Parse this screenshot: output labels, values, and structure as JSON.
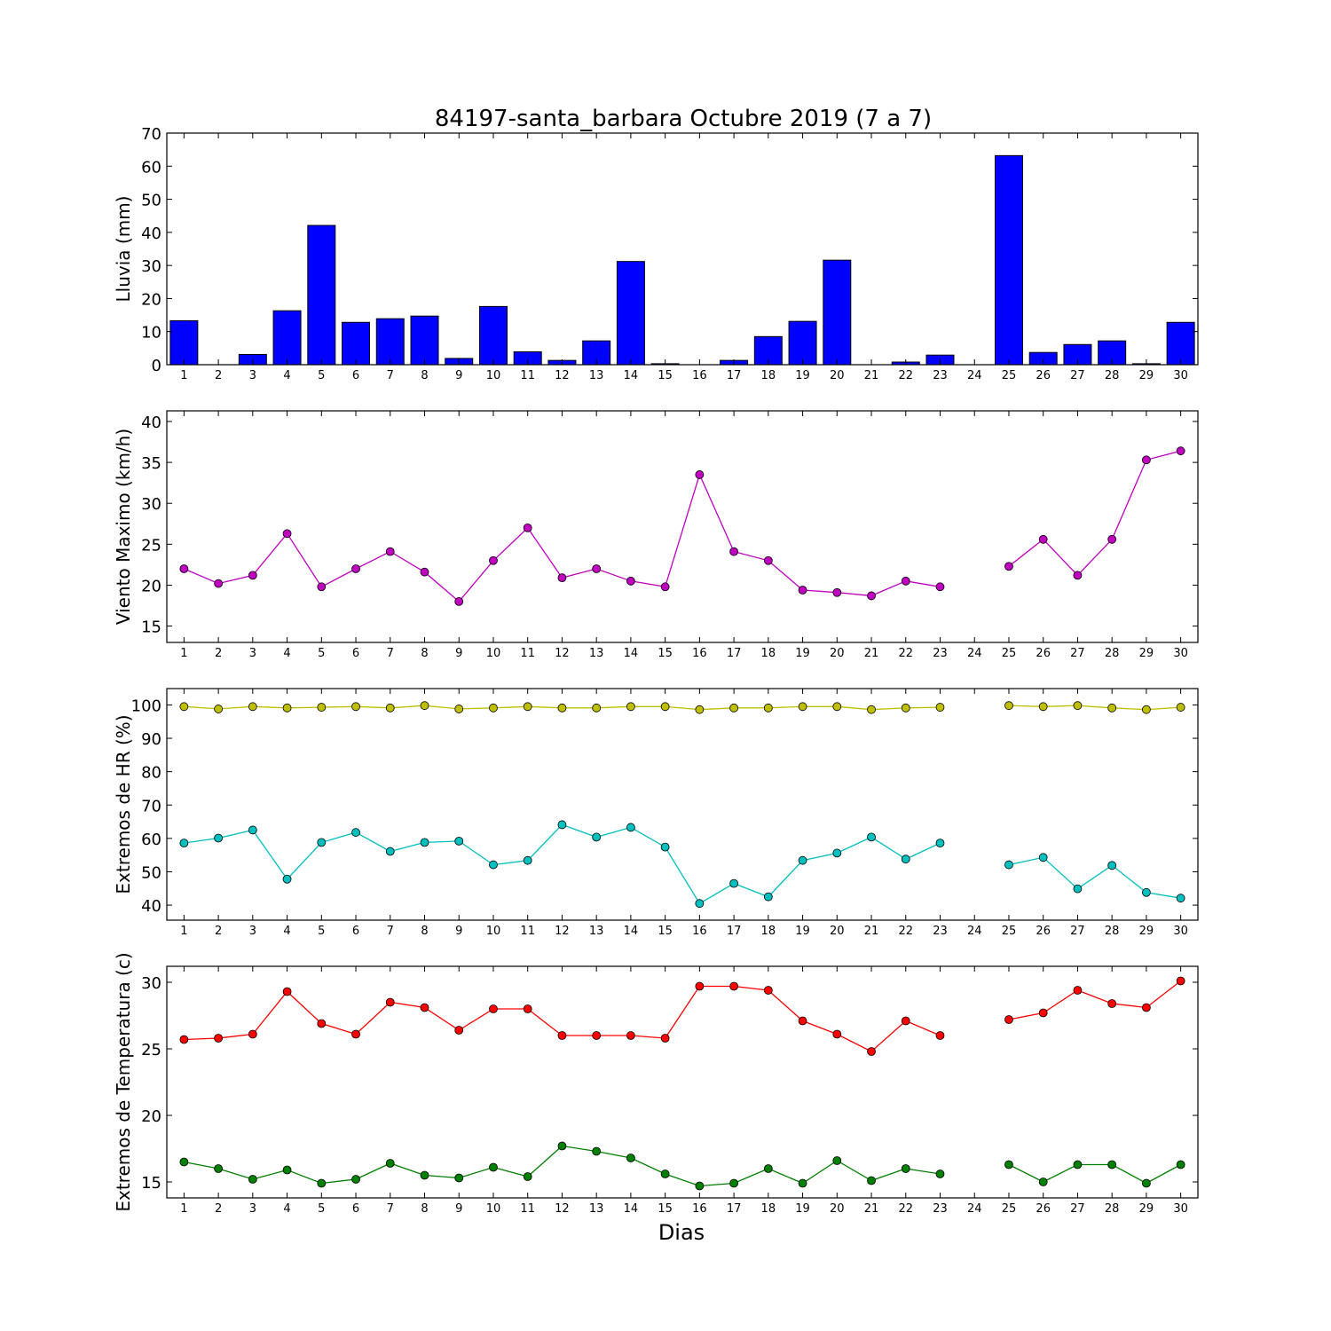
{
  "title": "84197-santa_barbara Octubre 2019  (7 a 7)",
  "xlabel": "Dias",
  "chart_data": [
    {
      "type": "bar",
      "ylabel": "Lluvia (mm)",
      "ylim": [
        0,
        70
      ],
      "yticks": [
        0,
        10,
        20,
        30,
        40,
        50,
        60,
        70
      ],
      "x": [
        1,
        2,
        3,
        4,
        5,
        6,
        7,
        8,
        9,
        10,
        11,
        12,
        13,
        14,
        15,
        16,
        17,
        18,
        19,
        20,
        21,
        22,
        23,
        24,
        25,
        26,
        27,
        28,
        29,
        30
      ],
      "series": [
        {
          "color": "#0000ff",
          "values": [
            13.3,
            0,
            3.1,
            16.3,
            42.1,
            12.8,
            13.9,
            14.7,
            1.9,
            17.6,
            3.9,
            1.3,
            7.2,
            31.2,
            0.3,
            0,
            1.3,
            8.5,
            13.1,
            31.6,
            0,
            0.8,
            2.9,
            0,
            63.2,
            3.7,
            6.1,
            7.2,
            0.3,
            12.8
          ]
        }
      ]
    },
    {
      "type": "line",
      "ylabel": "Viento Maximo (km/h)",
      "ylim": [
        13,
        41.3
      ],
      "yticks": [
        15,
        20,
        25,
        30,
        35,
        40
      ],
      "x": [
        1,
        2,
        3,
        4,
        5,
        6,
        7,
        8,
        9,
        10,
        11,
        12,
        13,
        14,
        15,
        16,
        17,
        18,
        19,
        20,
        21,
        22,
        23,
        24,
        25,
        26,
        27,
        28,
        29,
        30
      ],
      "series": [
        {
          "color": "#bf00bf",
          "values": [
            22.0,
            20.2,
            21.2,
            26.3,
            19.8,
            22.0,
            24.1,
            21.6,
            18.0,
            23.0,
            27.0,
            20.9,
            22.0,
            20.5,
            19.8,
            33.5,
            24.1,
            23.0,
            19.4,
            19.1,
            18.7,
            20.5,
            19.8,
            null,
            22.3,
            25.6,
            21.2,
            25.6,
            35.3,
            36.4
          ]
        }
      ]
    },
    {
      "type": "line",
      "ylabel": "Extremos de HR (%)",
      "ylim": [
        35.5,
        104.9
      ],
      "yticks": [
        40,
        50,
        60,
        70,
        80,
        90,
        100
      ],
      "x": [
        1,
        2,
        3,
        4,
        5,
        6,
        7,
        8,
        9,
        10,
        11,
        12,
        13,
        14,
        15,
        16,
        17,
        18,
        19,
        20,
        21,
        22,
        23,
        24,
        25,
        26,
        27,
        28,
        29,
        30
      ],
      "series": [
        {
          "color": "#bfbf00",
          "values": [
            99.5,
            98.8,
            99.5,
            99.1,
            99.3,
            99.5,
            99.1,
            99.8,
            98.8,
            99.1,
            99.5,
            99.1,
            99.1,
            99.5,
            99.5,
            98.6,
            99.1,
            99.1,
            99.5,
            99.5,
            98.6,
            99.1,
            99.3,
            null,
            99.8,
            99.5,
            99.8,
            99.1,
            98.6,
            99.3
          ]
        },
        {
          "color": "#00bfbf",
          "values": [
            58.6,
            60.1,
            62.5,
            47.8,
            58.8,
            61.8,
            56.1,
            58.8,
            59.2,
            52.1,
            53.4,
            64.1,
            60.4,
            63.3,
            57.4,
            40.5,
            46.5,
            42.5,
            53.4,
            55.6,
            60.4,
            53.8,
            58.6,
            null,
            52.1,
            54.3,
            44.9,
            51.9,
            43.8,
            42.1
          ]
        }
      ]
    },
    {
      "type": "line",
      "ylabel": "Extremos de Temperatura (c)",
      "ylim": [
        13.8,
        31.2
      ],
      "yticks": [
        15,
        20,
        25,
        30
      ],
      "x": [
        1,
        2,
        3,
        4,
        5,
        6,
        7,
        8,
        9,
        10,
        11,
        12,
        13,
        14,
        15,
        16,
        17,
        18,
        19,
        20,
        21,
        22,
        23,
        24,
        25,
        26,
        27,
        28,
        29,
        30
      ],
      "series": [
        {
          "color": "#ff0000",
          "values": [
            25.7,
            25.8,
            26.1,
            29.3,
            26.9,
            26.1,
            28.5,
            28.1,
            26.4,
            28.0,
            28.0,
            26.0,
            26.0,
            26.0,
            25.8,
            29.7,
            29.7,
            29.4,
            27.1,
            26.1,
            24.8,
            27.1,
            26.0,
            null,
            27.2,
            27.7,
            29.4,
            28.4,
            28.1,
            30.1
          ]
        },
        {
          "color": "#008000",
          "values": [
            16.5,
            16.0,
            15.2,
            15.9,
            14.9,
            15.2,
            16.4,
            15.5,
            15.3,
            16.1,
            15.4,
            17.7,
            17.3,
            16.8,
            15.6,
            14.7,
            14.9,
            16.0,
            14.9,
            16.6,
            15.1,
            16.0,
            15.6,
            null,
            16.3,
            15.0,
            16.3,
            16.3,
            14.9,
            16.3
          ]
        }
      ]
    }
  ]
}
